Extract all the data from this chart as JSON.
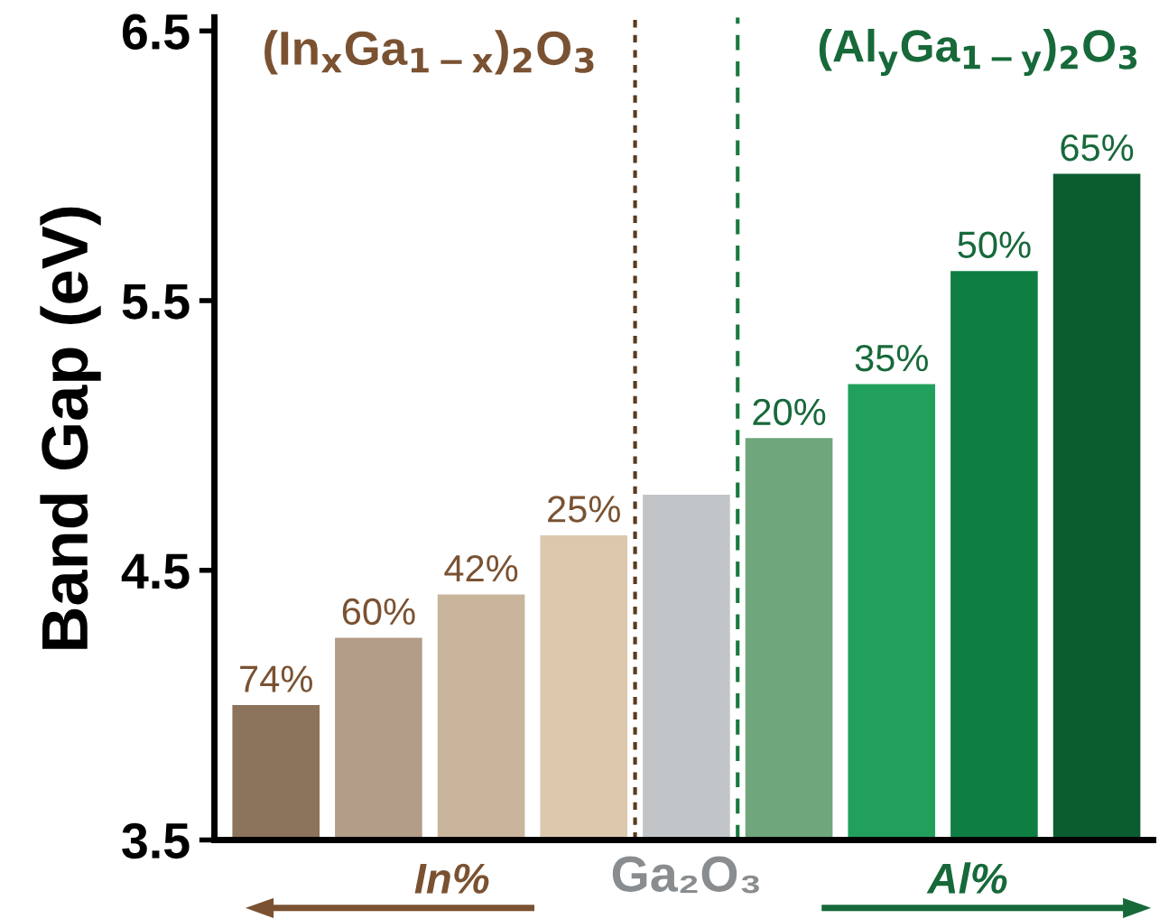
{
  "chart_data": {
    "type": "bar",
    "ylabel": "Band Gap (eV)",
    "categories": [
      null,
      null,
      null,
      null,
      "Ga₂O₃",
      null,
      null,
      null,
      null
    ],
    "values": [
      4.0,
      4.25,
      4.41,
      4.63,
      4.78,
      4.99,
      5.19,
      5.61,
      5.97
    ],
    "colors": [
      "#8c735c",
      "#b39c88",
      "#c9b49c",
      "#dcc8ad",
      "#c2c5c8",
      "#6fa67b",
      "#21a05b",
      "#0f7e43",
      "#0b5d30"
    ],
    "ylim": [
      3.5,
      6.55
    ],
    "yticks": [
      3.5,
      4.5,
      5.5,
      6.5
    ],
    "grid": false,
    "legend": false,
    "annotations": [
      "(In$_{x}$Ga$_{1−x}$)$_{2}$O$_{3}$",
      "(Al$_{y}$Ga$_{1−y}$)$_{2}$O$_{3}$",
      "In%",
      "Al%",
      {
        "text": "74%",
        "y": 4.0
      },
      {
        "text": "60%",
        "y": 4.25
      },
      {
        "text": "42%",
        "y": 4.41
      },
      {
        "text": "25%",
        "y": 4.63
      },
      {
        "text": "20%",
        "y": 4.99
      },
      {
        "text": "35%",
        "y": 5.19
      },
      {
        "text": "50%",
        "y": 5.61
      },
      {
        "text": "65%",
        "y": 5.97
      }
    ]
  }
}
